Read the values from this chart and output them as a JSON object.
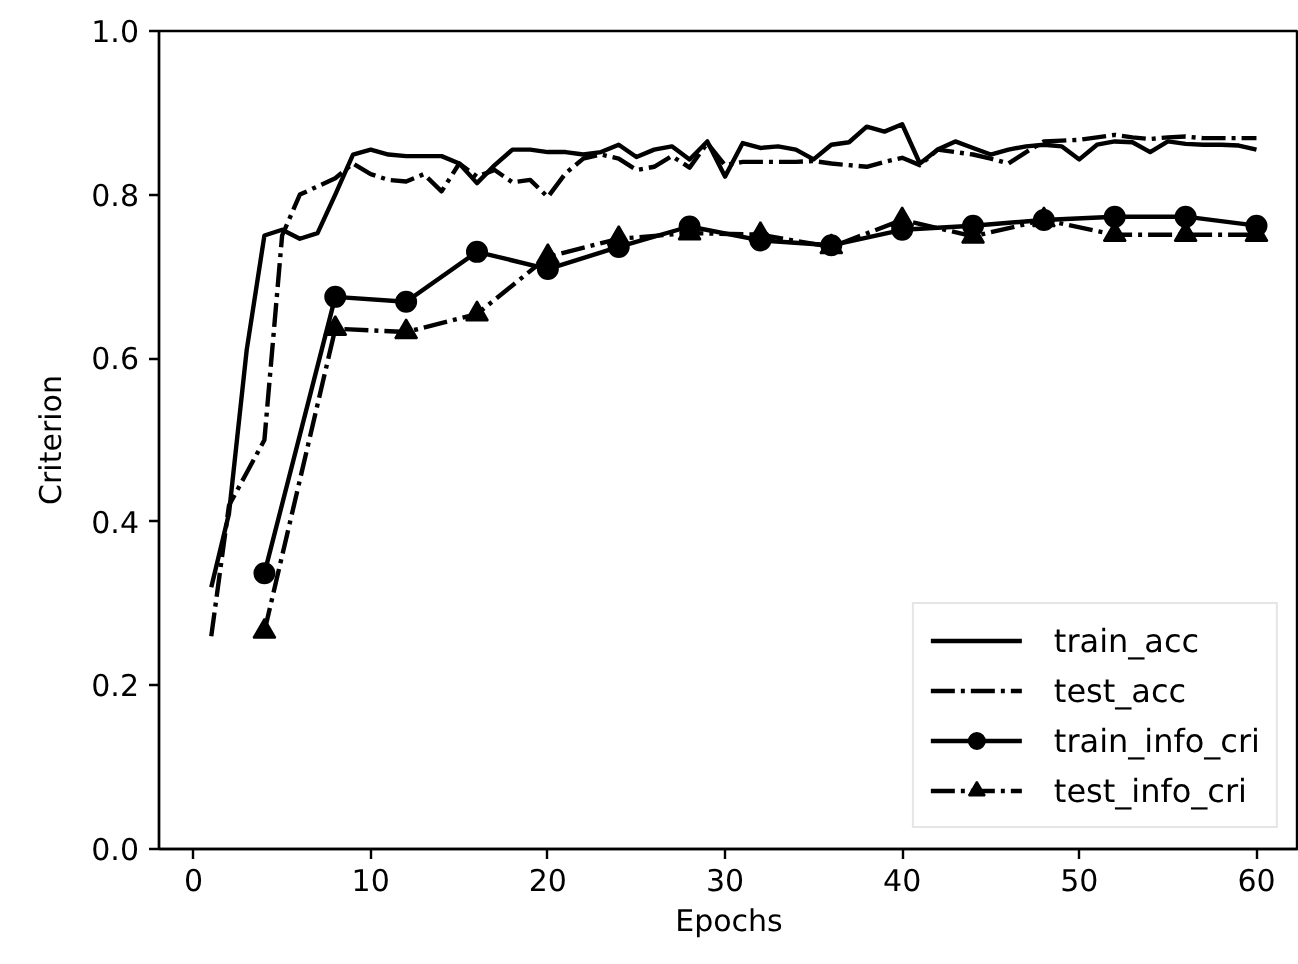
{
  "chart_data": {
    "type": "line",
    "xlabel": "Epochs",
    "ylabel": "Criterion",
    "xlim": [
      -1.95,
      62.4
    ],
    "ylim": [
      0,
      1.0
    ],
    "xticks": [
      0,
      10,
      20,
      30,
      40,
      50,
      60
    ],
    "yticks": [
      {
        "value": 0,
        "label": "0.0"
      },
      0.2,
      0.4,
      0.6,
      0.8,
      {
        "value": 1,
        "label": "1.0"
      }
    ],
    "legend": "bottom right",
    "series": [
      {
        "name": "train_acc",
        "color": "#000000",
        "line_style": "solid",
        "marker": "none",
        "x": [
          1,
          2,
          3,
          4,
          5,
          6,
          7,
          8,
          9,
          10,
          11,
          12,
          13,
          14,
          15,
          16,
          17,
          18,
          19,
          20,
          21,
          22,
          23,
          24,
          25,
          26,
          27,
          28,
          29,
          30,
          31,
          32,
          33,
          34,
          35,
          36,
          37,
          38,
          39,
          40,
          41,
          42,
          43,
          44,
          45,
          46,
          47,
          48,
          49,
          50,
          51,
          52,
          53,
          54,
          55,
          56,
          57,
          58,
          59,
          60
        ],
        "values": [
          0.32,
          0.41,
          0.61,
          0.75,
          0.757,
          0.746,
          0.753,
          0.8,
          0.849,
          0.855,
          0.849,
          0.847,
          0.847,
          0.847,
          0.838,
          0.814,
          0.836,
          0.855,
          0.855,
          0.852,
          0.852,
          0.849,
          0.852,
          0.861,
          0.846,
          0.855,
          0.859,
          0.843,
          0.865,
          0.822,
          0.863,
          0.857,
          0.859,
          0.855,
          0.843,
          0.861,
          0.864,
          0.883,
          0.877,
          0.886,
          0.838,
          0.855,
          0.865,
          0.857,
          0.849,
          0.855,
          0.859,
          0.861,
          0.859,
          0.843,
          0.861,
          0.865,
          0.864,
          0.852,
          0.865,
          0.862,
          0.861,
          0.861,
          0.86,
          0.855
        ]
      },
      {
        "name": "test_acc",
        "color": "#000000",
        "line_style": "dashdot",
        "marker": "none",
        "x": [
          1,
          2,
          3,
          4,
          5,
          6,
          7,
          8,
          9,
          10,
          11,
          12,
          13,
          14,
          15,
          16,
          17,
          18,
          19,
          20,
          21,
          22,
          23,
          24,
          25,
          26,
          27,
          28,
          29,
          30,
          31,
          32,
          33,
          34,
          35,
          36,
          37,
          38,
          39,
          40,
          41,
          42,
          43,
          44,
          45,
          46,
          47,
          48,
          49,
          50,
          51,
          52,
          53,
          54,
          55,
          56,
          57,
          58,
          59,
          60
        ],
        "values": [
          0.26,
          0.42,
          0.46,
          0.5,
          0.75,
          0.8,
          0.81,
          0.82,
          0.838,
          0.825,
          0.818,
          0.816,
          0.825,
          0.804,
          0.838,
          0.822,
          0.83,
          0.815,
          0.818,
          0.797,
          0.826,
          0.844,
          0.849,
          0.844,
          0.83,
          0.834,
          0.847,
          0.833,
          0.863,
          0.836,
          0.84,
          0.84,
          0.84,
          0.84,
          0.841,
          0.838,
          0.836,
          0.834,
          0.84,
          0.845,
          0.836,
          0.855,
          0.852,
          0.849,
          0.844,
          0.838,
          0.852,
          0.865,
          0.866,
          0.867,
          0.87,
          0.873,
          0.87,
          0.868,
          0.87,
          0.871,
          0.869,
          0.869,
          0.869,
          0.869
        ]
      },
      {
        "name": "train_info_cri",
        "color": "#000000",
        "line_style": "solid",
        "marker": "circle",
        "x": [
          4,
          8,
          12,
          16,
          20,
          24,
          28,
          32,
          36,
          40,
          44,
          48,
          52,
          56,
          60
        ],
        "values": [
          0.337,
          0.675,
          0.669,
          0.73,
          0.709,
          0.736,
          0.761,
          0.744,
          0.738,
          0.757,
          0.762,
          0.769,
          0.773,
          0.773,
          0.762
        ]
      },
      {
        "name": "test_info_cri",
        "color": "#000000",
        "line_style": "dashdot",
        "marker": "triangle",
        "x": [
          4,
          8,
          12,
          16,
          20,
          24,
          28,
          32,
          36,
          40,
          44,
          48,
          52,
          56,
          60
        ],
        "values": [
          0.266,
          0.636,
          0.632,
          0.654,
          0.724,
          0.746,
          0.753,
          0.751,
          0.736,
          0.769,
          0.749,
          0.769,
          0.751,
          0.751,
          0.751
        ]
      }
    ]
  }
}
